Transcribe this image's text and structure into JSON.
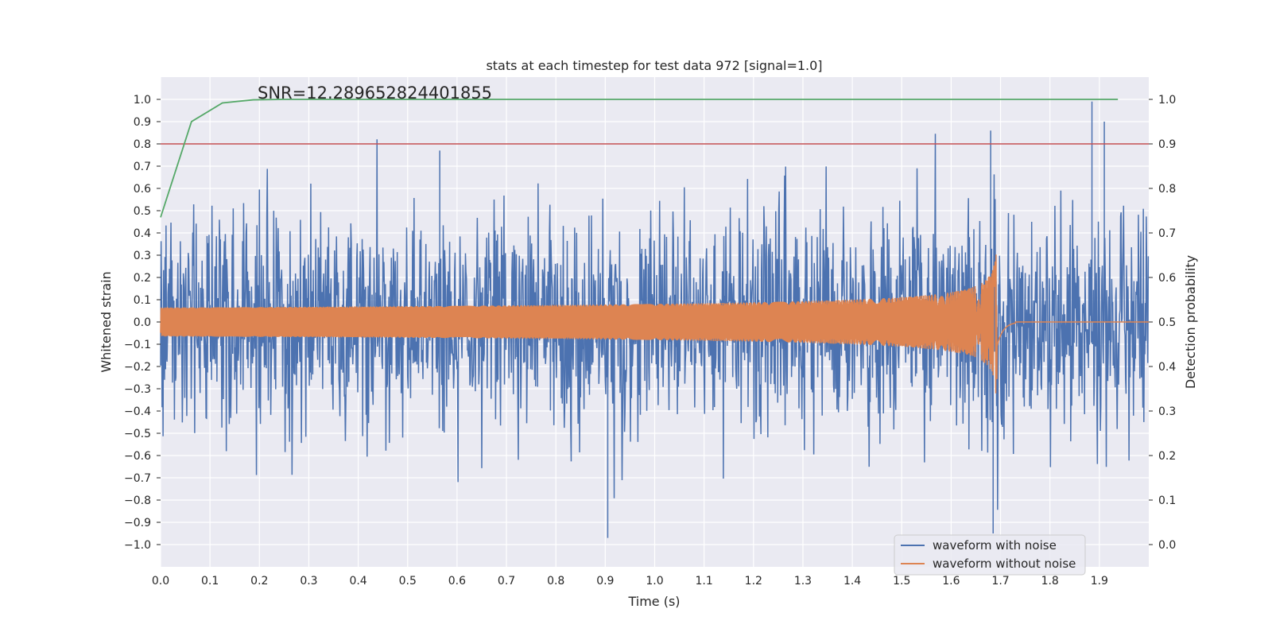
{
  "chart_data": {
    "type": "line",
    "title": "stats at each timestep for test data 972 [signal=1.0]",
    "xlabel": "Time (s)",
    "ylabel": "Whitened strain",
    "y2label": "Detection probability",
    "annotation": "SNR=12.289652824401855",
    "xlim": [
      0.0,
      2.0
    ],
    "ylim": [
      -1.1,
      1.1
    ],
    "y2lim": [
      -0.05,
      1.05
    ],
    "xticks": [
      "0.0",
      "0.1",
      "0.2",
      "0.3",
      "0.4",
      "0.5",
      "0.6",
      "0.7",
      "0.8",
      "0.9",
      "1.0",
      "1.1",
      "1.2",
      "1.3",
      "1.4",
      "1.5",
      "1.6",
      "1.7",
      "1.8",
      "1.9"
    ],
    "yticks": [
      "−1.0",
      "−0.9",
      "−0.8",
      "−0.7",
      "−0.6",
      "−0.5",
      "−0.4",
      "−0.3",
      "−0.2",
      "−0.1",
      "0.0",
      "0.1",
      "0.2",
      "0.3",
      "0.4",
      "0.5",
      "0.6",
      "0.7",
      "0.8",
      "0.9",
      "1.0"
    ],
    "y2ticks": [
      "0.0",
      "0.1",
      "0.2",
      "0.3",
      "0.4",
      "0.5",
      "0.6",
      "0.7",
      "0.8",
      "0.9",
      "1.0"
    ],
    "grid": true,
    "legend_position": "lower-right",
    "series": [
      {
        "name": "waveform with noise",
        "axis": "left",
        "color": "#4c72b0",
        "description_values": {
          "points_approx": 2000,
          "notable_extremes": [
            {
              "x": 0.565,
              "y": 0.77
            },
            {
              "x": 0.905,
              "y": -0.97
            },
            {
              "x": 1.68,
              "y": 0.86
            },
            {
              "x": 1.685,
              "y": -0.95
            },
            {
              "x": 1.885,
              "y": 0.99
            },
            {
              "x": 1.91,
              "y": 0.9
            }
          ]
        }
      },
      {
        "name": "waveform without noise",
        "axis": "left",
        "color": "#dd8452",
        "chirp": {
          "start_amplitude": 0.065,
          "peak_amplitude": 0.33,
          "merger_time": 1.69,
          "ringdown_end": 1.73
        }
      },
      {
        "name": "",
        "axis": "right",
        "color": "#55a868",
        "x": [
          0.0,
          0.0625,
          0.125,
          0.1875,
          0.25,
          0.3125,
          0.375,
          0.4375,
          0.5,
          0.5625,
          0.625,
          0.6875,
          0.75,
          0.8125,
          0.875,
          0.9375,
          1.0,
          1.0625,
          1.125,
          1.1875,
          1.25,
          1.3125,
          1.375,
          1.4375,
          1.5,
          1.5625,
          1.625,
          1.6875,
          1.75,
          1.8125,
          1.875,
          1.9375
        ],
        "values": [
          0.735,
          0.95,
          0.992,
          0.999,
          1.0,
          1.0,
          1.0,
          1.0,
          1.0,
          1.0,
          1.0,
          1.0,
          1.0,
          1.0,
          1.0,
          1.0,
          1.0,
          1.0,
          1.0,
          1.0,
          1.0,
          1.0,
          1.0,
          1.0,
          1.0,
          1.0,
          1.0,
          1.0,
          1.0,
          1.0,
          1.0,
          1.0
        ]
      },
      {
        "name": "",
        "axis": "right",
        "color": "#c44e52",
        "type": "threshold",
        "value": 0.9
      }
    ]
  }
}
